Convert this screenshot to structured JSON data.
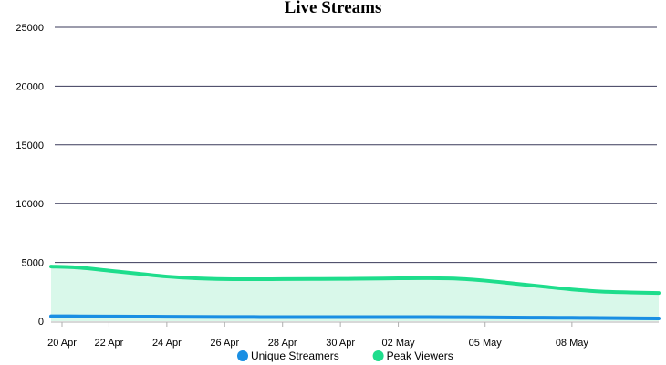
{
  "chart_data": {
    "type": "area",
    "title": "Live Streams",
    "xlabel": "",
    "ylabel": "",
    "x_ticks": [
      "20 Apr",
      "22 Apr",
      "24 Apr",
      "26 Apr",
      "28 Apr",
      "30 Apr",
      "02 May",
      "05 May",
      "08 May"
    ],
    "x": [
      "20 Apr",
      "21 Apr",
      "22 Apr",
      "23 Apr",
      "24 Apr",
      "25 Apr",
      "26 Apr",
      "27 Apr",
      "28 Apr",
      "29 Apr",
      "30 Apr",
      "01 May",
      "02 May",
      "03 May",
      "04 May",
      "05 May",
      "06 May",
      "07 May",
      "08 May",
      "09 May",
      "10 May",
      "11 May"
    ],
    "ylim": [
      0,
      25000
    ],
    "y_ticks": [
      0,
      5000,
      10000,
      15000,
      20000,
      25000
    ],
    "grid": "horizontal",
    "legend_position": "bottom",
    "series": [
      {
        "name": "Unique Streamers",
        "color": "#1a8fe3",
        "fill": false,
        "values": [
          420,
          410,
          400,
          390,
          380,
          370,
          360,
          355,
          350,
          350,
          350,
          350,
          350,
          345,
          340,
          330,
          310,
          300,
          290,
          270,
          250,
          230
        ]
      },
      {
        "name": "Peak Viewers",
        "color": "#1edd8c",
        "fill_color": "#d9f8ea",
        "fill": true,
        "values": [
          4650,
          4550,
          4300,
          4050,
          3800,
          3650,
          3580,
          3570,
          3580,
          3590,
          3600,
          3620,
          3650,
          3660,
          3620,
          3450,
          3200,
          2950,
          2700,
          2520,
          2450,
          2400
        ]
      }
    ]
  }
}
